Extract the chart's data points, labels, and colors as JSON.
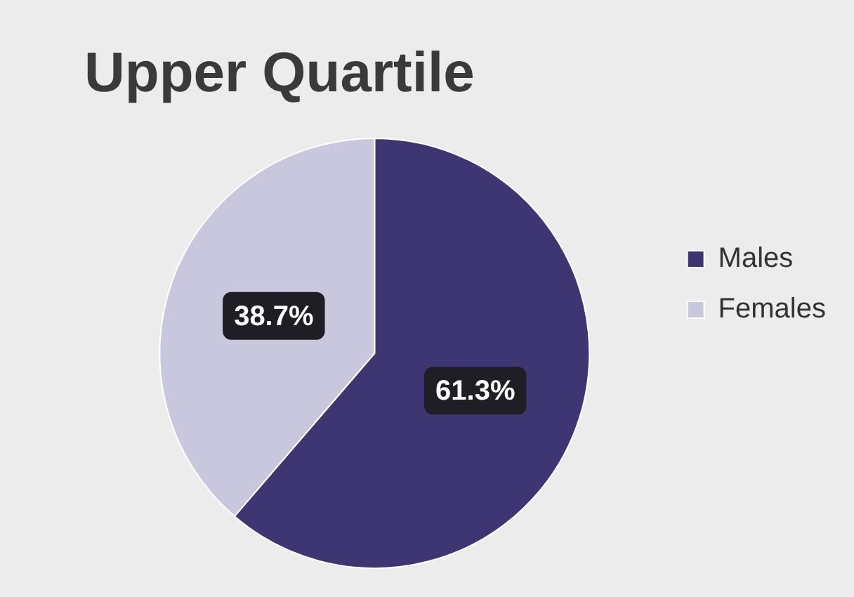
{
  "chart_data": {
    "type": "pie",
    "title": "Upper Quartile",
    "categories": [
      "Males",
      "Females"
    ],
    "values": [
      61.3,
      38.7
    ],
    "colors": [
      "#3d3672",
      "#c9c7dd"
    ],
    "value_labels": [
      "61.3%",
      "38.7%"
    ],
    "legend": "right"
  }
}
